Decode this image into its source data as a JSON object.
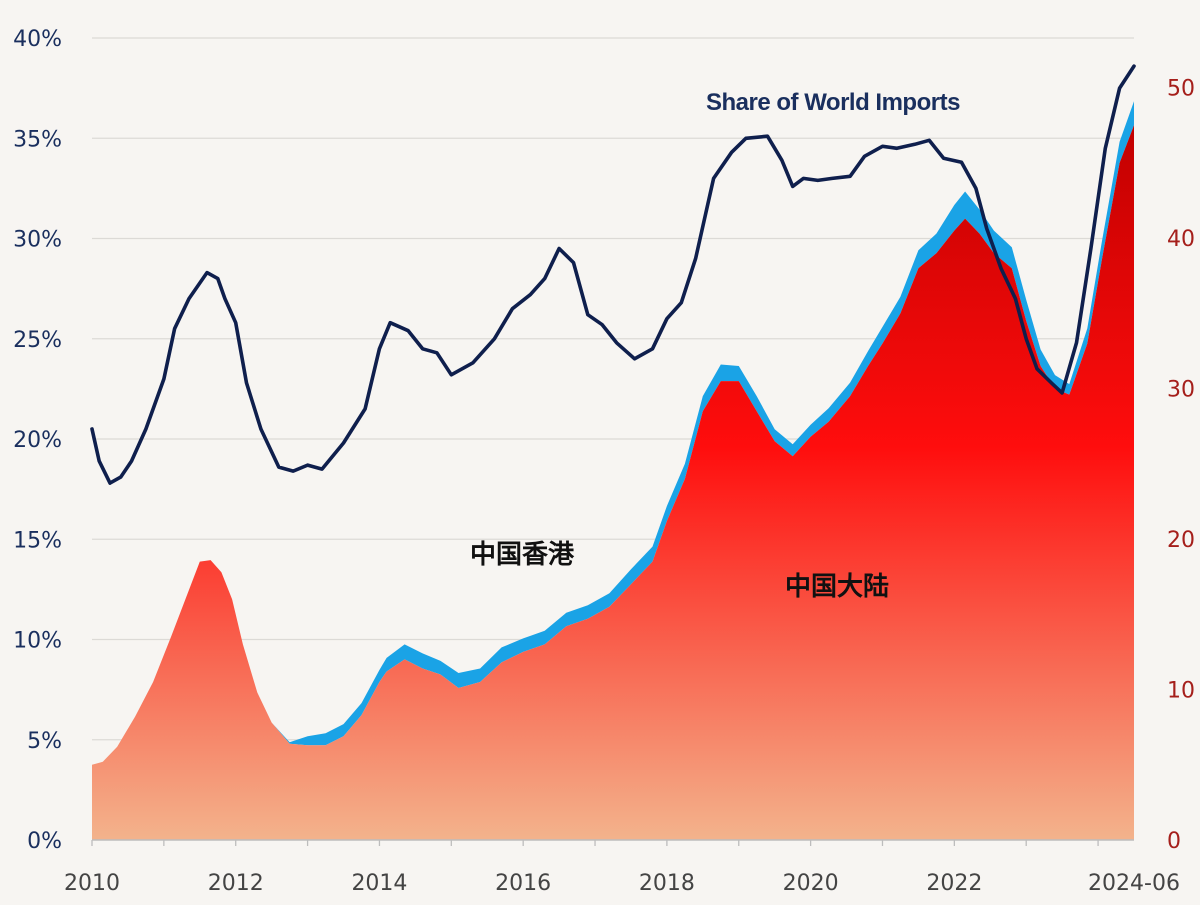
{
  "chart_data": {
    "type": "area",
    "x_tick_labels": [
      "2010",
      "2012",
      "2014",
      "2016",
      "2018",
      "2020",
      "2022",
      "2024-06"
    ],
    "x_ticks": [
      2010,
      2012,
      2014,
      2016,
      2018,
      2020,
      2022,
      2024.5
    ],
    "xlim": [
      2010,
      2024.5
    ],
    "left_axis": {
      "ylim": [
        0,
        40
      ],
      "ticks": [
        0,
        5,
        10,
        15,
        20,
        25,
        30,
        35,
        40
      ],
      "tick_labels": [
        "0%",
        "5%",
        "10%",
        "15%",
        "20%",
        "25%",
        "30%",
        "35%",
        "40%"
      ]
    },
    "right_axis": {
      "ylim": [
        0,
        53.3
      ],
      "ticks": [
        0,
        10,
        20,
        30,
        40,
        50
      ],
      "tick_labels": [
        "0",
        "10",
        "20",
        "30",
        "40",
        "50"
      ]
    },
    "annotations": {
      "line_label": "Share of World Imports",
      "hk_label": "中国香港",
      "mainland_label": "中国大陆"
    },
    "series": [
      {
        "name": "Share of World Imports",
        "kind": "line",
        "axis": "left",
        "color": "#0f1f4d",
        "x": [
          2010.0,
          2010.1,
          2010.25,
          2010.4,
          2010.55,
          2010.75,
          2011.0,
          2011.15,
          2011.35,
          2011.6,
          2011.75,
          2011.85,
          2012.0,
          2012.15,
          2012.35,
          2012.6,
          2012.8,
          2013.0,
          2013.2,
          2013.5,
          2013.8,
          2014.0,
          2014.15,
          2014.4,
          2014.6,
          2014.8,
          2015.0,
          2015.3,
          2015.6,
          2015.85,
          2016.1,
          2016.3,
          2016.5,
          2016.7,
          2016.9,
          2017.1,
          2017.3,
          2017.55,
          2017.8,
          2018.0,
          2018.2,
          2018.4,
          2018.65,
          2018.9,
          2019.1,
          2019.4,
          2019.6,
          2019.75,
          2019.9,
          2020.1,
          2020.3,
          2020.55,
          2020.75,
          2021.0,
          2021.2,
          2021.45,
          2021.65,
          2021.85,
          2022.1,
          2022.3,
          2022.45,
          2022.65,
          2022.85,
          2023.0,
          2023.15,
          2023.35,
          2023.5,
          2023.7,
          2023.9,
          2024.1,
          2024.3,
          2024.5
        ],
        "values": [
          20.5,
          18.9,
          17.8,
          18.1,
          18.9,
          20.5,
          23.0,
          25.5,
          27.0,
          28.3,
          28.0,
          27.0,
          25.8,
          22.8,
          20.5,
          18.6,
          18.4,
          18.7,
          18.5,
          19.8,
          21.5,
          24.5,
          25.8,
          25.4,
          24.5,
          24.3,
          23.2,
          23.8,
          25.0,
          26.5,
          27.2,
          28.0,
          29.5,
          28.8,
          26.2,
          25.7,
          24.8,
          24.0,
          24.5,
          26.0,
          26.8,
          29.0,
          33.0,
          34.3,
          35.0,
          35.1,
          33.9,
          32.6,
          33.0,
          32.9,
          33.0,
          33.1,
          34.1,
          34.6,
          34.5,
          34.7,
          34.9,
          34.0,
          33.8,
          32.5,
          30.5,
          28.5,
          27.0,
          25.0,
          23.5,
          22.8,
          22.3,
          24.8,
          29.5,
          34.5,
          37.5,
          38.6
        ]
      },
      {
        "name": "中国大陆",
        "kind": "area",
        "axis": "right",
        "color_top": "#cc0000",
        "color_bottom": "#f4b08a",
        "x": [
          2010.0,
          2010.15,
          2010.35,
          2010.6,
          2010.85,
          2011.1,
          2011.3,
          2011.5,
          2011.65,
          2011.8,
          2011.95,
          2012.1,
          2012.3,
          2012.5,
          2012.75,
          2013.0,
          2013.25,
          2013.5,
          2013.75,
          2014.0,
          2014.1,
          2014.35,
          2014.6,
          2014.85,
          2015.1,
          2015.4,
          2015.7,
          2016.0,
          2016.3,
          2016.6,
          2016.9,
          2017.2,
          2017.5,
          2017.8,
          2018.0,
          2018.25,
          2018.5,
          2018.75,
          2019.0,
          2019.25,
          2019.5,
          2019.75,
          2020.0,
          2020.25,
          2020.55,
          2020.8,
          2021.0,
          2021.25,
          2021.5,
          2021.75,
          2022.0,
          2022.15,
          2022.35,
          2022.55,
          2022.8,
          2023.0,
          2023.2,
          2023.4,
          2023.6,
          2023.85,
          2024.05,
          2024.3,
          2024.5
        ],
        "values": [
          5.0,
          5.2,
          6.2,
          8.2,
          10.5,
          13.5,
          16.0,
          18.5,
          18.6,
          17.8,
          16.0,
          13.0,
          9.8,
          7.8,
          6.4,
          6.3,
          6.3,
          6.9,
          8.3,
          10.5,
          11.2,
          12.0,
          11.4,
          11.0,
          10.1,
          10.5,
          11.8,
          12.5,
          13.0,
          14.2,
          14.7,
          15.5,
          17.0,
          18.5,
          21.2,
          24.0,
          28.5,
          30.5,
          30.5,
          28.5,
          26.5,
          25.5,
          26.8,
          27.8,
          29.5,
          31.5,
          33.0,
          35.0,
          38.0,
          39.0,
          40.5,
          41.3,
          40.3,
          39.0,
          38.0,
          34.5,
          31.5,
          30.0,
          29.6,
          33.0,
          38.5,
          45.0,
          47.5
        ]
      },
      {
        "name": "中国香港",
        "kind": "area",
        "axis": "right",
        "color": "#1aa3e6",
        "x": [
          2010.0,
          2010.15,
          2010.35,
          2010.6,
          2010.85,
          2011.1,
          2011.3,
          2011.5,
          2011.65,
          2011.8,
          2011.95,
          2012.1,
          2012.3,
          2012.5,
          2012.75,
          2013.0,
          2013.25,
          2013.5,
          2013.75,
          2014.0,
          2014.1,
          2014.35,
          2014.6,
          2014.85,
          2015.1,
          2015.4,
          2015.7,
          2016.0,
          2016.3,
          2016.6,
          2016.9,
          2017.2,
          2017.5,
          2017.8,
          2018.0,
          2018.25,
          2018.5,
          2018.75,
          2019.0,
          2019.25,
          2019.5,
          2019.75,
          2020.0,
          2020.25,
          2020.55,
          2020.8,
          2021.0,
          2021.25,
          2021.5,
          2021.75,
          2022.0,
          2022.15,
          2022.35,
          2022.55,
          2022.8,
          2023.0,
          2023.2,
          2023.4,
          2023.6,
          2023.85,
          2024.05,
          2024.3,
          2024.5
        ],
        "values": [
          0.0,
          0.0,
          0.0,
          0.0,
          0.0,
          0.0,
          0.0,
          0.0,
          0.0,
          0.0,
          0.0,
          0.0,
          0.0,
          0.0,
          0.1,
          0.6,
          0.8,
          0.8,
          0.8,
          0.8,
          0.9,
          1.0,
          1.0,
          0.9,
          1.0,
          0.9,
          1.0,
          0.9,
          0.9,
          0.9,
          0.9,
          0.9,
          1.0,
          1.0,
          1.0,
          1.0,
          1.0,
          1.1,
          1.0,
          1.0,
          0.8,
          0.8,
          0.8,
          0.9,
          0.9,
          1.0,
          1.1,
          1.1,
          1.2,
          1.3,
          1.7,
          1.8,
          1.6,
          1.5,
          1.4,
          1.4,
          1.1,
          0.9,
          0.7,
          1.0,
          1.2,
          1.4,
          1.6
        ]
      }
    ]
  }
}
